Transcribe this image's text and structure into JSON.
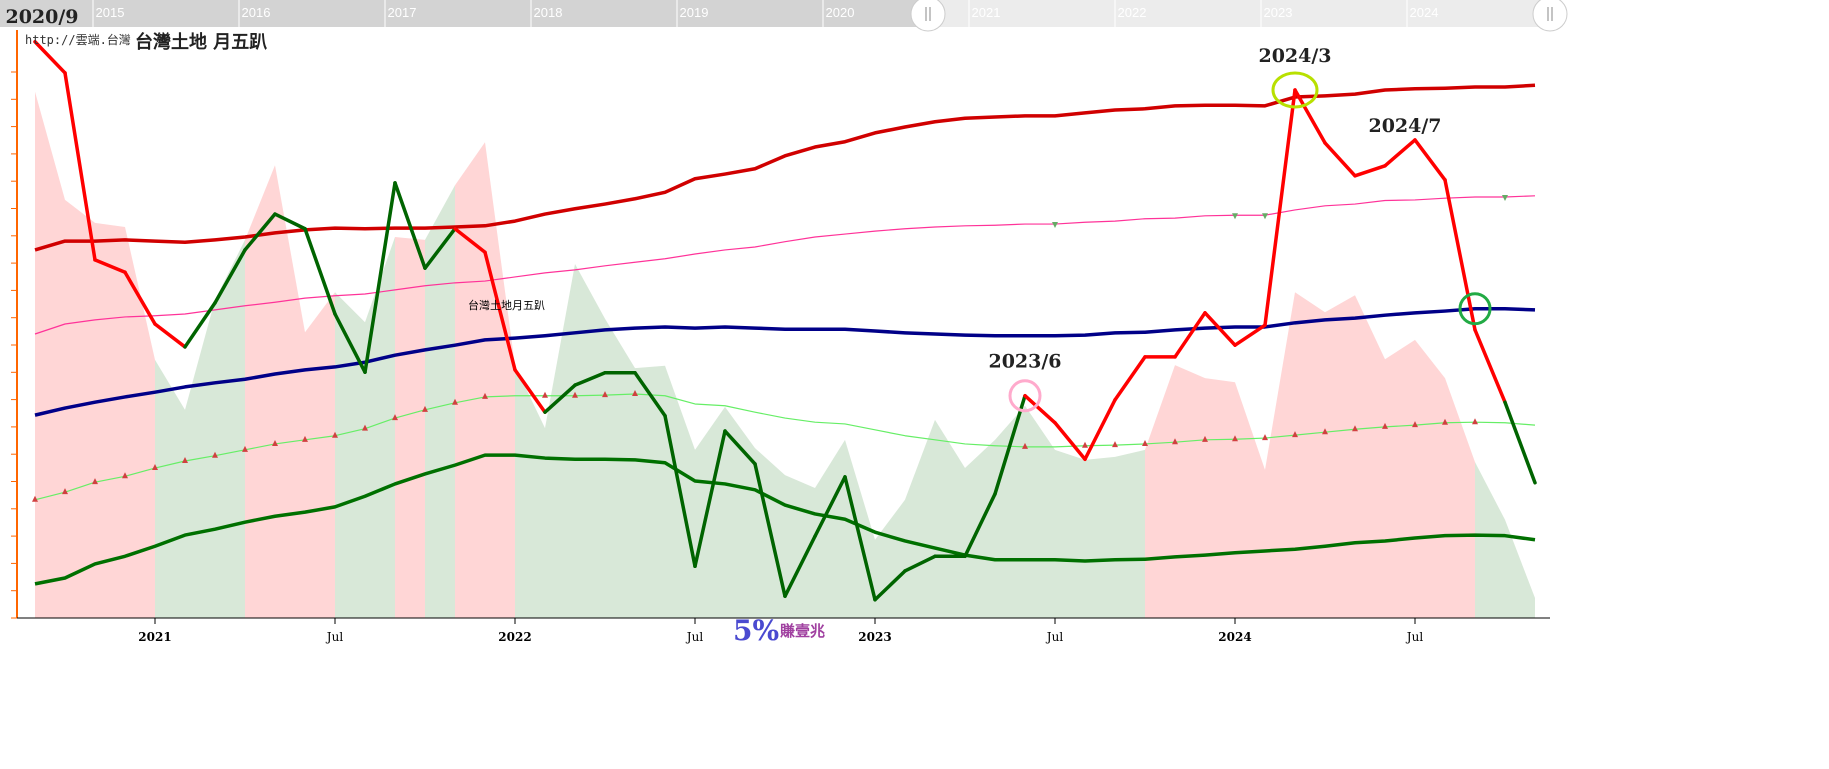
{
  "chart_data": {
    "type": "line",
    "title": "台灣土地 月五趴",
    "source": "http://雲端.台灣",
    "series_label": "台灣土地月五趴",
    "start_month": "2020/9",
    "x_tick_labels": [
      {
        "month": "2021/1",
        "label": "2021",
        "major": true
      },
      {
        "month": "2021/7",
        "label": "Jul",
        "major": false
      },
      {
        "month": "2022/1",
        "label": "2022",
        "major": true
      },
      {
        "month": "2022/7",
        "label": "Jul",
        "major": false
      },
      {
        "month": "2023/1",
        "label": "2023",
        "major": true
      },
      {
        "month": "2023/7",
        "label": "Jul",
        "major": false
      },
      {
        "month": "2024/1",
        "label": "2024",
        "major": true
      },
      {
        "month": "2024/7",
        "label": "Jul",
        "major": false
      }
    ],
    "y_axis": {
      "labels_shown": false,
      "range": [
        0,
        100
      ]
    },
    "grid": false,
    "navigator": {
      "years": [
        "2015",
        "2016",
        "2017",
        "2018",
        "2019",
        "2020",
        "2021",
        "2022",
        "2023",
        "2024"
      ],
      "selected_from": "2020/9",
      "selected_to": "2024/11"
    },
    "series": [
      {
        "key": "fast",
        "values": [
          98.0,
          92.7,
          60.9,
          58.8,
          50.0,
          46.1,
          53.6,
          62.6,
          68.7,
          66.2,
          51.7,
          41.8,
          74.0,
          59.5,
          66.2,
          62.2,
          42.2,
          35.0,
          39.6,
          41.7,
          41.7,
          34.4,
          8.8,
          31.8,
          26.2,
          3.7,
          13.9,
          24.0,
          3.1,
          8.0,
          10.5,
          10.5,
          21.1,
          37.8,
          33.2,
          27.0,
          37.1,
          44.4,
          44.4,
          51.9,
          46.4,
          49.8,
          89.8,
          80.8,
          75.2,
          76.9,
          81.3,
          74.5,
          49.0,
          36.7,
          23.0
        ],
        "segment_signal": "RRRRRGGGGGGGGGRRRGGGGGGGGGGGGGGGGRRRRRRRRRRRRRRRRG"
      },
      {
        "key": "long-ma",
        "color": "#d00000",
        "values": [
          62.6,
          64.1,
          64.1,
          64.3,
          64.1,
          63.9,
          64.3,
          64.8,
          65.5,
          66.0,
          66.3,
          66.2,
          66.3,
          66.3,
          66.5,
          66.7,
          67.5,
          68.7,
          69.6,
          70.4,
          71.3,
          72.4,
          74.7,
          75.5,
          76.4,
          78.6,
          80.1,
          81.0,
          82.5,
          83.5,
          84.4,
          85.0,
          85.2,
          85.4,
          85.4,
          85.9,
          86.4,
          86.6,
          87.1,
          87.2,
          87.2,
          87.1,
          88.6,
          88.8,
          89.1,
          89.8,
          90.0,
          90.1,
          90.3,
          90.3,
          90.6
        ]
      },
      {
        "key": "upper-band",
        "color": "#ff3399",
        "values": [
          48.3,
          50.0,
          50.7,
          51.2,
          51.4,
          51.7,
          52.4,
          53.1,
          53.7,
          54.4,
          54.8,
          55.1,
          55.8,
          56.5,
          57.0,
          57.3,
          58.0,
          58.7,
          59.2,
          59.9,
          60.5,
          61.1,
          61.9,
          62.6,
          63.1,
          64.0,
          64.8,
          65.3,
          65.8,
          66.2,
          66.5,
          66.7,
          66.8,
          67.0,
          67.0,
          67.3,
          67.5,
          67.9,
          68.0,
          68.4,
          68.5,
          68.5,
          69.4,
          70.1,
          70.4,
          71.0,
          71.1,
          71.4,
          71.6,
          71.6,
          71.8
        ],
        "markers_down": [
          34,
          40,
          41,
          49
        ]
      },
      {
        "key": "mid-ma",
        "color": "#000088",
        "values": [
          34.5,
          35.7,
          36.7,
          37.6,
          38.4,
          39.3,
          40.0,
          40.6,
          41.5,
          42.2,
          42.7,
          43.5,
          44.7,
          45.6,
          46.4,
          47.3,
          47.6,
          48.0,
          48.5,
          49.0,
          49.3,
          49.5,
          49.3,
          49.5,
          49.3,
          49.1,
          49.1,
          49.1,
          48.8,
          48.5,
          48.3,
          48.1,
          48.0,
          48.0,
          48.0,
          48.1,
          48.5,
          48.6,
          49.0,
          49.3,
          49.5,
          49.5,
          50.2,
          50.7,
          51.0,
          51.5,
          51.9,
          52.2,
          52.6,
          52.6,
          52.4
        ]
      },
      {
        "key": "lower-band",
        "color": "#66ee66",
        "values": [
          20.1,
          21.4,
          23.1,
          24.1,
          25.5,
          26.7,
          27.6,
          28.6,
          29.6,
          30.3,
          31.0,
          32.2,
          34.0,
          35.4,
          36.6,
          37.6,
          37.8,
          37.8,
          37.8,
          37.9,
          38.1,
          37.8,
          36.4,
          36.1,
          35.0,
          34.0,
          33.3,
          33.0,
          32.0,
          31.0,
          30.3,
          29.6,
          29.3,
          29.1,
          29.1,
          29.3,
          29.4,
          29.6,
          29.9,
          30.3,
          30.4,
          30.6,
          31.1,
          31.6,
          32.1,
          32.5,
          32.8,
          33.2,
          33.3,
          33.2,
          32.8
        ],
        "markers_up": [
          0,
          1,
          2,
          3,
          4,
          5,
          6,
          7,
          8,
          9,
          10,
          11,
          12,
          13,
          14,
          15,
          17,
          18,
          19,
          20,
          33,
          35,
          36,
          37,
          38,
          39,
          40,
          41,
          42,
          43,
          44,
          45,
          46,
          47,
          48
        ]
      },
      {
        "key": "slow-ma",
        "color": "#007000",
        "values": [
          5.8,
          6.8,
          9.2,
          10.5,
          12.2,
          14.1,
          15.1,
          16.3,
          17.3,
          18.0,
          18.9,
          20.7,
          22.8,
          24.5,
          26.0,
          27.7,
          27.7,
          27.2,
          27.0,
          27.0,
          26.9,
          26.4,
          23.3,
          22.8,
          21.8,
          19.2,
          17.7,
          16.8,
          14.6,
          13.1,
          11.9,
          10.7,
          9.9,
          9.9,
          9.9,
          9.7,
          9.9,
          10.0,
          10.4,
          10.7,
          11.1,
          11.4,
          11.7,
          12.2,
          12.8,
          13.1,
          13.6,
          14.0,
          14.1,
          14.0,
          13.3
        ]
      },
      {
        "key": "area",
        "values": [
          89.5,
          71.1,
          67.2,
          66.5,
          43.9,
          35.4,
          54.1,
          64.3,
          77.0,
          48.6,
          55.4,
          50.3,
          64.8,
          64.3,
          73.6,
          80.9,
          42.9,
          32.3,
          60.2,
          50.9,
          42.5,
          42.9,
          28.6,
          35.9,
          28.9,
          24.3,
          22.1,
          30.3,
          13.3,
          20.1,
          33.7,
          25.5,
          30.3,
          36.1,
          28.6,
          26.9,
          27.4,
          28.6,
          43.0,
          40.8,
          40.1,
          25.2,
          55.4,
          52.0,
          54.9,
          44.0,
          47.3,
          40.8,
          26.5,
          16.7,
          3.4
        ],
        "segment_signal": "PPPPGGGPPPGGPGPPGGGGGGGGGGGGGGGGGGGGGPPPPPPPPPPPGG"
      }
    ],
    "annotations": [
      {
        "label": "2020/9",
        "index": 0,
        "circle": null
      },
      {
        "label": "2023/6",
        "index": 33,
        "circle": "#ffaacc"
      },
      {
        "label": "2024/3",
        "index": 42,
        "circle": "#b8e000"
      },
      {
        "label": "2024/7",
        "index": 46,
        "circle": null
      },
      {
        "label": "",
        "index": 48,
        "circle": "#22aa44"
      }
    ],
    "colors": {
      "rise": "#ff0000",
      "fall": "#006400",
      "area_rise": "#ffd6d6",
      "area_fall": "#d8e8d8",
      "axis": "#ff6600"
    },
    "logo": {
      "pct": "5%",
      "text": "賺壹兆"
    }
  }
}
